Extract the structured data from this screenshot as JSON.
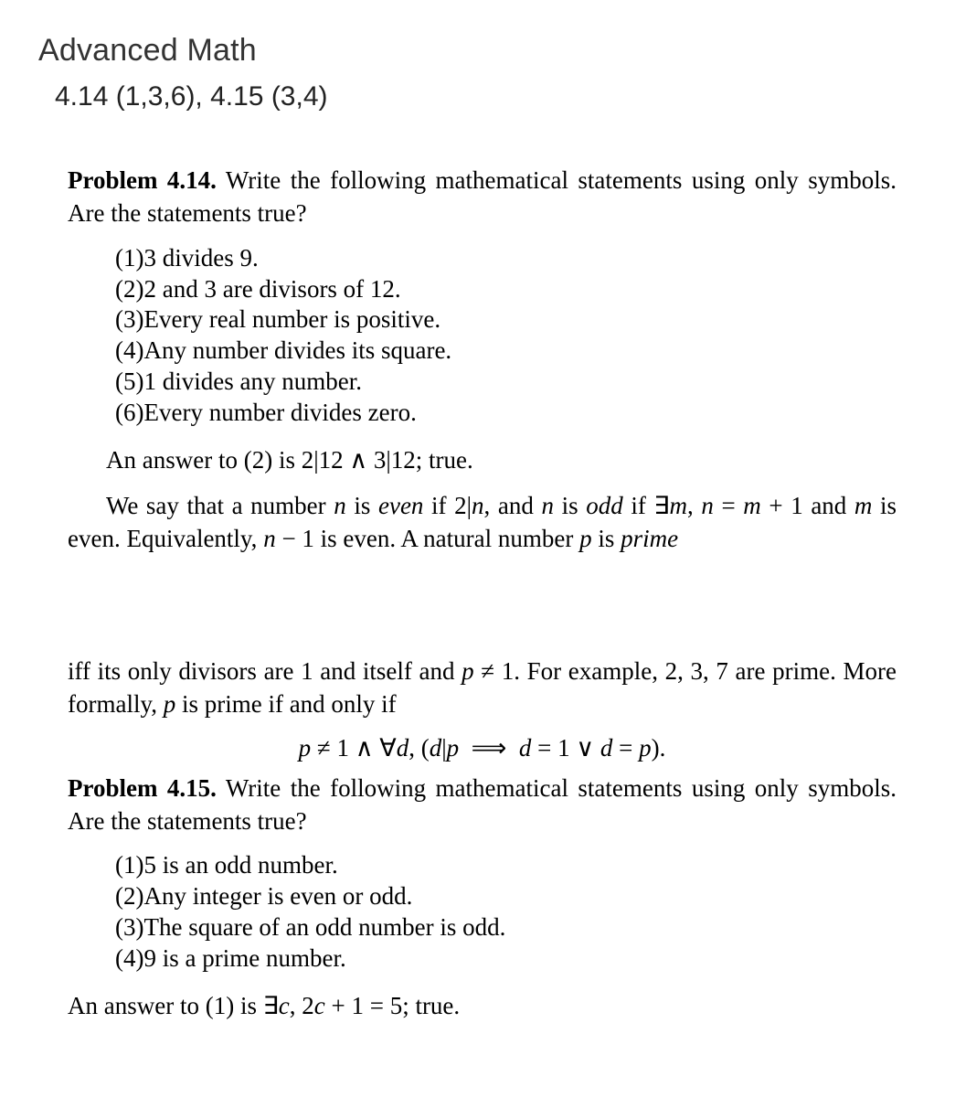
{
  "header": {
    "category": "Advanced Math",
    "assignment": "4.14 (1,3,6), 4.15 (3,4)"
  },
  "p414": {
    "label": "Problem 4.14.",
    "text": "Write the following mathematical statements using only symbols. Are the statements true?",
    "items": [
      "3 divides 9.",
      "2 and 3 are divisors of 12.",
      "Every real number is positive.",
      "Any number divides its square.",
      "1 divides any number.",
      "Every number divides zero."
    ],
    "answer_para": "An answer to (2) is 2|12 ∧ 3|12; true.",
    "even_odd_para": "We say that a number n is even if 2|n, and n is odd if ∃m, n = m + 1 and m is even. Equivalently, n − 1 is even. A natural number p is prime",
    "prime_para": "iff its only divisors are 1 and itself and p ≠ 1. For example, 2, 3, 7 are prime. More formally, p is prime if and only if",
    "prime_formula": "p ≠ 1 ∧ ∀d, (d|p  ⟹  d = 1 ∨ d = p)."
  },
  "p415": {
    "label": "Problem 4.15.",
    "text": "Write the following mathematical statements using only symbols. Are the statements true?",
    "items": [
      "5 is an odd number.",
      "Any integer is even or odd.",
      "The square of an odd number is odd.",
      "9 is a prime number."
    ],
    "answer_para": "An answer to (1) is ∃c, 2c + 1 = 5; true."
  }
}
